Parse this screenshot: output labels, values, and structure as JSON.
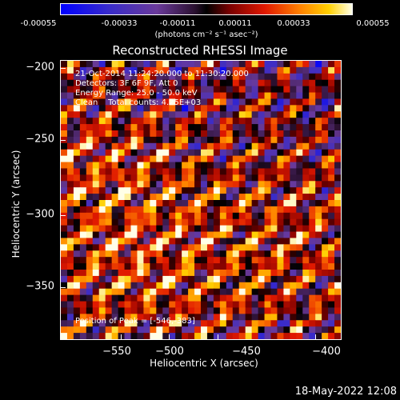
{
  "colorbar": {
    "tick_labels": [
      "-0.00055",
      "-0.00033",
      "-0.00011",
      "0.00011",
      "0.00033",
      "0.00055"
    ],
    "units": "(photons cm⁻² s⁻¹ asec⁻²)",
    "min": -0.00055,
    "max": 0.00055,
    "colormap": "rainbow-to-heat"
  },
  "plot": {
    "title": "Reconstructed RHESSI Image",
    "info": [
      "21-Oct-2014 11:24:20.000 to 11:30:20.000",
      "Detectors: 3F 6F 9F, Att 0",
      "Energy Range: 25.0 - 50.0 keV",
      "Clean    Total counts: 4.25E+03"
    ],
    "peak": "Position of Peak = [-546,-383]"
  },
  "axes": {
    "x_label": "Heliocentric X (arcsec)",
    "y_label": "Heliocentric Y (arcsec)",
    "x_ticks": [
      "−550",
      "−500",
      "−450",
      "−400"
    ],
    "y_ticks": [
      "−200",
      "−250",
      "−300",
      "−350"
    ]
  },
  "footer": {
    "timestamp": "18-May-2022 12:08"
  }
}
